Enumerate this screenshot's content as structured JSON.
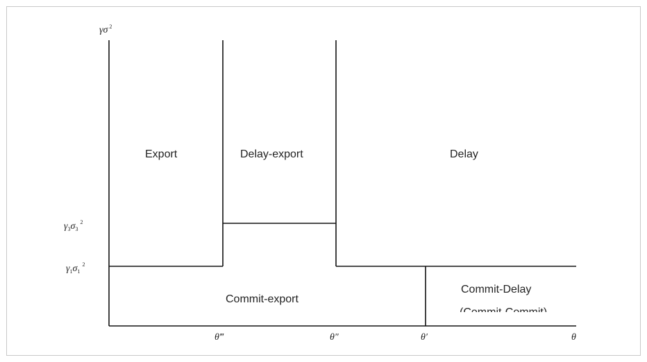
{
  "axes": {
    "y_label": {
      "base": "γσ",
      "sup": "2"
    },
    "x_label": "θ"
  },
  "y_ticks": [
    {
      "greek1": "γ",
      "sub1": "3",
      "greek2": "σ",
      "sub2": "3",
      "sup": "2"
    },
    {
      "greek1": "γ",
      "sub1": "1",
      "greek2": "σ",
      "sub2": "1",
      "sup": "2"
    }
  ],
  "x_ticks": [
    "θ‴",
    "θ″",
    "θ′"
  ],
  "regions": {
    "export": "Export",
    "delay_export": "Delay-export",
    "delay": "Delay",
    "commit_export": "Commit-export",
    "commit_delay_line1": "Commit-Delay",
    "commit_delay_line2": "(Commit-Commit)"
  },
  "colors": {
    "line": "#111111",
    "text": "#222222",
    "frame": "#c8c8c8"
  }
}
